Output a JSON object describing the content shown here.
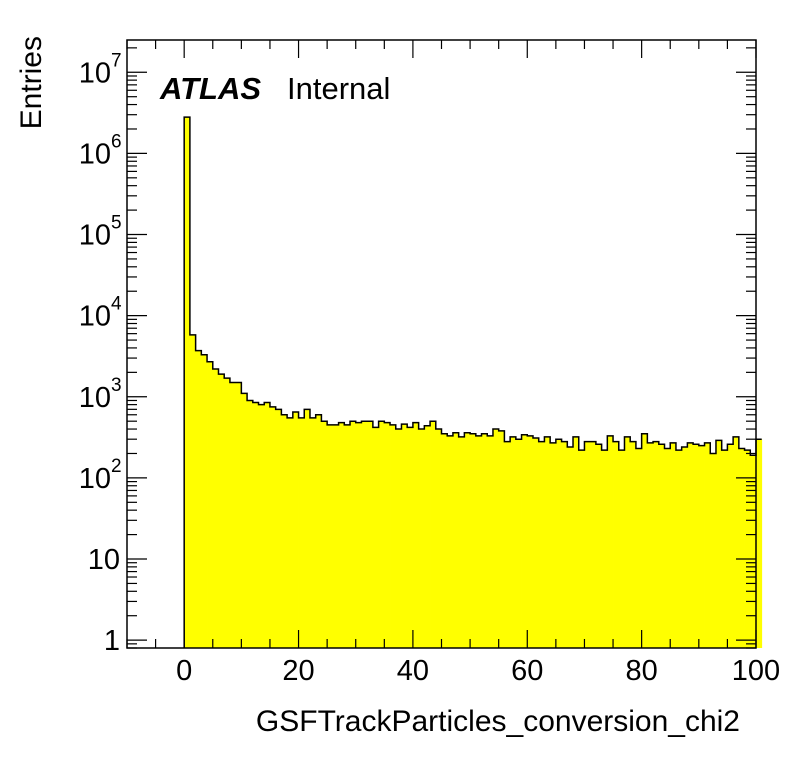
{
  "chart_data": {
    "type": "bar",
    "histogram": true,
    "xlabel": "GSFTrackParticles_conversion_chi2",
    "ylabel": "Entries",
    "xlim": [
      -10,
      100
    ],
    "ylim": [
      0.8,
      25000000
    ],
    "yscale": "log",
    "x_ticks": [
      {
        "value": 0,
        "label": "0"
      },
      {
        "value": 20,
        "label": "20"
      },
      {
        "value": 40,
        "label": "40"
      },
      {
        "value": 60,
        "label": "60"
      },
      {
        "value": 80,
        "label": "80"
      },
      {
        "value": 100,
        "label": "100"
      }
    ],
    "y_ticks": [
      {
        "value": 1,
        "base": "1",
        "exp": ""
      },
      {
        "value": 10,
        "base": "10",
        "exp": ""
      },
      {
        "value": 100,
        "base": "10",
        "exp": "2"
      },
      {
        "value": 1000,
        "base": "10",
        "exp": "3"
      },
      {
        "value": 10000,
        "base": "10",
        "exp": "4"
      },
      {
        "value": 100000,
        "base": "10",
        "exp": "5"
      },
      {
        "value": 1000000,
        "base": "10",
        "exp": "6"
      },
      {
        "value": 10000000,
        "base": "10",
        "exp": "7"
      }
    ],
    "label_atlas": "ATLAS",
    "label_status": "Internal",
    "fill_color": "#ffff00",
    "line_color": "#000000",
    "bin_width": 1,
    "bin_start": 0,
    "values": [
      2800000,
      5800,
      3700,
      3300,
      2700,
      2200,
      1900,
      1700,
      1500,
      1500,
      1100,
      900,
      850,
      800,
      850,
      750,
      700,
      600,
      550,
      650,
      550,
      700,
      550,
      600,
      500,
      450,
      450,
      480,
      450,
      500,
      480,
      500,
      500,
      420,
      500,
      480,
      450,
      400,
      460,
      420,
      480,
      400,
      440,
      500,
      400,
      350,
      330,
      360,
      320,
      360,
      350,
      330,
      350,
      330,
      400,
      380,
      280,
      320,
      300,
      340,
      330,
      310,
      280,
      320,
      270,
      300,
      280,
      240,
      320,
      220,
      280,
      280,
      260,
      220,
      330,
      280,
      220,
      320,
      280,
      230,
      350,
      270,
      280,
      260,
      230,
      270,
      220,
      240,
      270,
      260,
      250,
      270,
      200,
      290,
      220,
      260,
      320,
      230,
      220,
      190,
      300
    ]
  }
}
